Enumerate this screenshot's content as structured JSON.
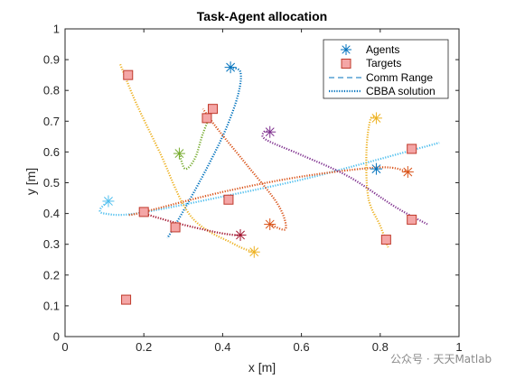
{
  "chart_data": {
    "type": "scatter",
    "title": "Task-Agent allocation",
    "xlabel": "x [m]",
    "ylabel": "y [m]",
    "xlim": [
      0,
      1
    ],
    "ylim": [
      0,
      1
    ],
    "xticks": [
      "0",
      "0.2",
      "0.4",
      "0.6",
      "0.8",
      "1"
    ],
    "yticks": [
      "0",
      "0.1",
      "0.2",
      "0.3",
      "0.4",
      "0.5",
      "0.6",
      "0.7",
      "0.8",
      "0.9",
      "1"
    ],
    "grid": false,
    "legend_position": "top-right",
    "legend": [
      {
        "label": "Agents",
        "marker": "asterisk"
      },
      {
        "label": "Targets",
        "marker": "square"
      },
      {
        "label": "Comm Range",
        "marker": "dashed-line"
      },
      {
        "label": "CBBA solution",
        "marker": "dotted-line"
      }
    ],
    "agents": [
      {
        "x": 0.42,
        "y": 0.875,
        "color": "#0072BD"
      },
      {
        "x": 0.79,
        "y": 0.545,
        "color": "#0072BD"
      },
      {
        "x": 0.29,
        "y": 0.595,
        "color": "#77AC30"
      },
      {
        "x": 0.11,
        "y": 0.44,
        "color": "#4DBEEE"
      },
      {
        "x": 0.52,
        "y": 0.665,
        "color": "#7E2F8E"
      },
      {
        "x": 0.445,
        "y": 0.33,
        "color": "#A2142F"
      },
      {
        "x": 0.48,
        "y": 0.275,
        "color": "#EDB120"
      },
      {
        "x": 0.79,
        "y": 0.71,
        "color": "#EDB120"
      },
      {
        "x": 0.87,
        "y": 0.535,
        "color": "#D95319"
      },
      {
        "x": 0.52,
        "y": 0.365,
        "color": "#D95319"
      }
    ],
    "targets": [
      {
        "x": 0.16,
        "y": 0.85
      },
      {
        "x": 0.375,
        "y": 0.74
      },
      {
        "x": 0.36,
        "y": 0.71
      },
      {
        "x": 0.88,
        "y": 0.61
      },
      {
        "x": 0.415,
        "y": 0.445
      },
      {
        "x": 0.2,
        "y": 0.405
      },
      {
        "x": 0.28,
        "y": 0.355
      },
      {
        "x": 0.88,
        "y": 0.38
      },
      {
        "x": 0.815,
        "y": 0.315
      },
      {
        "x": 0.155,
        "y": 0.12
      }
    ],
    "paths": [
      {
        "color": "#0072BD",
        "points": [
          [
            0.42,
            0.875
          ],
          [
            0.445,
            0.86
          ],
          [
            0.44,
            0.79
          ],
          [
            0.41,
            0.68
          ],
          [
            0.365,
            0.56
          ],
          [
            0.31,
            0.43
          ],
          [
            0.26,
            0.32
          ]
        ]
      },
      {
        "color": "#4DBEEE",
        "points": [
          [
            0.11,
            0.44
          ],
          [
            0.09,
            0.415
          ],
          [
            0.1,
            0.4
          ],
          [
            0.18,
            0.4
          ],
          [
            0.4,
            0.455
          ],
          [
            0.6,
            0.51
          ],
          [
            0.75,
            0.56
          ],
          [
            0.95,
            0.63
          ]
        ]
      },
      {
        "color": "#D95319",
        "points": [
          [
            0.87,
            0.535
          ],
          [
            0.8,
            0.55
          ],
          [
            0.6,
            0.52
          ],
          [
            0.4,
            0.47
          ],
          [
            0.2,
            0.405
          ],
          [
            0.16,
            0.395
          ]
        ]
      },
      {
        "color": "#D95319",
        "points": [
          [
            0.52,
            0.365
          ],
          [
            0.56,
            0.35
          ],
          [
            0.54,
            0.43
          ],
          [
            0.46,
            0.56
          ],
          [
            0.39,
            0.67
          ],
          [
            0.35,
            0.74
          ]
        ]
      },
      {
        "color": "#7E2F8E",
        "points": [
          [
            0.52,
            0.665
          ],
          [
            0.505,
            0.665
          ],
          [
            0.51,
            0.64
          ],
          [
            0.6,
            0.59
          ],
          [
            0.72,
            0.52
          ],
          [
            0.84,
            0.42
          ],
          [
            0.92,
            0.365
          ]
        ]
      },
      {
        "color": "#77AC30",
        "points": [
          [
            0.29,
            0.595
          ],
          [
            0.305,
            0.545
          ],
          [
            0.33,
            0.58
          ],
          [
            0.35,
            0.66
          ],
          [
            0.375,
            0.74
          ]
        ]
      },
      {
        "color": "#EDB120",
        "points": [
          [
            0.48,
            0.275
          ],
          [
            0.43,
            0.3
          ],
          [
            0.32,
            0.39
          ],
          [
            0.24,
            0.6
          ],
          [
            0.18,
            0.76
          ],
          [
            0.14,
            0.885
          ]
        ]
      },
      {
        "color": "#EDB120",
        "points": [
          [
            0.79,
            0.71
          ],
          [
            0.775,
            0.705
          ],
          [
            0.765,
            0.6
          ],
          [
            0.77,
            0.45
          ],
          [
            0.8,
            0.36
          ],
          [
            0.82,
            0.29
          ]
        ]
      },
      {
        "color": "#A2142F",
        "points": [
          [
            0.445,
            0.33
          ],
          [
            0.43,
            0.33
          ],
          [
            0.38,
            0.34
          ],
          [
            0.28,
            0.37
          ],
          [
            0.2,
            0.4
          ]
        ]
      }
    ]
  },
  "watermark": {
    "text": "公众号 · 天天Matlab"
  }
}
